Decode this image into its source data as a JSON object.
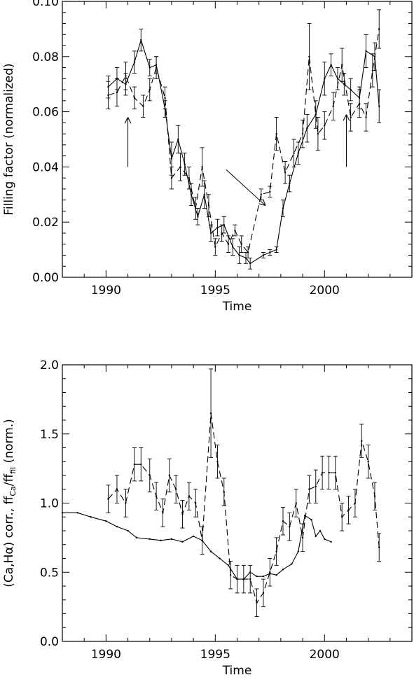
{
  "chart_data": [
    {
      "type": "line",
      "xlabel": "Time",
      "ylabel": "Filling factor (normalized)",
      "xlim": [
        1988,
        2004
      ],
      "ylim": [
        0,
        0.1
      ],
      "xticks": [
        "1990",
        "1995",
        "2000"
      ],
      "yticks": [
        "0.00",
        "0.02",
        "0.04",
        "0.06",
        "0.08",
        "0.10"
      ],
      "series": [
        {
          "style": "solid",
          "x": [
            1990.1,
            1990.5,
            1990.9,
            1991.3,
            1991.6,
            1992.0,
            1992.3,
            1992.7,
            1993.0,
            1993.3,
            1993.6,
            1993.9,
            1994.2,
            1994.5,
            1994.8,
            1995.1,
            1995.4,
            1995.8,
            1996.1,
            1996.4,
            1996.6,
            1997.2,
            1997.5,
            1997.8,
            1998.1,
            1998.4,
            1998.8,
            1999.2,
            1999.6,
            2000.0,
            2000.3,
            2000.6,
            2000.9,
            2001.2,
            2001.6,
            2001.9,
            2002.3,
            2002.5
          ],
          "y": [
            0.069,
            0.072,
            0.07,
            0.078,
            0.086,
            0.076,
            0.077,
            0.061,
            0.043,
            0.05,
            0.041,
            0.03,
            0.022,
            0.03,
            0.016,
            0.018,
            0.019,
            0.011,
            0.008,
            0.007,
            0.005,
            0.008,
            0.009,
            0.01,
            0.025,
            0.034,
            0.045,
            0.054,
            0.059,
            0.072,
            0.077,
            0.072,
            0.07,
            0.068,
            0.065,
            0.082,
            0.08,
            0.062
          ],
          "yerr": [
            0.004,
            0.004,
            0.004,
            0.004,
            0.004,
            0.003,
            0.003,
            0.003,
            0.006,
            0.005,
            0.004,
            0.004,
            0.003,
            0.005,
            0.003,
            0.003,
            0.003,
            0.003,
            0.003,
            0.002,
            0.002,
            0.001,
            0.001,
            0.001,
            0.003,
            0.003,
            0.004,
            0.005,
            0.005,
            0.006,
            0.004,
            0.004,
            0.004,
            0.004,
            0.004,
            0.006,
            0.005,
            0.006
          ]
        },
        {
          "style": "dashed",
          "x": [
            1990.1,
            1990.5,
            1990.9,
            1991.3,
            1991.7,
            1992.0,
            1992.3,
            1992.7,
            1993.0,
            1993.4,
            1993.8,
            1994.1,
            1994.4,
            1994.7,
            1995.0,
            1995.3,
            1995.6,
            1995.9,
            1996.2,
            1996.5,
            1997.1,
            1997.5,
            1997.8,
            1998.2,
            1998.6,
            1999.0,
            1999.3,
            1999.7,
            2000.0,
            2000.4,
            2000.8,
            2001.2,
            2001.6,
            2001.9,
            2002.2,
            2002.5
          ],
          "y": [
            0.066,
            0.067,
            0.073,
            0.065,
            0.062,
            0.068,
            0.076,
            0.065,
            0.036,
            0.04,
            0.036,
            0.025,
            0.04,
            0.026,
            0.011,
            0.016,
            0.012,
            0.017,
            0.012,
            0.009,
            0.03,
            0.031,
            0.052,
            0.038,
            0.045,
            0.052,
            0.08,
            0.052,
            0.055,
            0.062,
            0.077,
            0.058,
            0.063,
            0.058,
            0.075,
            0.09
          ],
          "yerr": [
            0.005,
            0.005,
            0.005,
            0.004,
            0.004,
            0.004,
            0.004,
            0.004,
            0.004,
            0.005,
            0.004,
            0.004,
            0.007,
            0.004,
            0.003,
            0.003,
            0.003,
            0.002,
            0.003,
            0.002,
            0.002,
            0.002,
            0.006,
            0.004,
            0.005,
            0.005,
            0.012,
            0.006,
            0.005,
            0.005,
            0.006,
            0.005,
            0.005,
            0.005,
            0.006,
            0.007
          ]
        }
      ],
      "arrows": [
        {
          "from": [
            1991.0,
            0.04
          ],
          "to": [
            1991.0,
            0.058
          ]
        },
        {
          "from": [
            1995.5,
            0.039
          ],
          "to": [
            1997.3,
            0.026
          ]
        },
        {
          "from": [
            2001.0,
            0.04
          ],
          "to": [
            2001.0,
            0.059
          ]
        }
      ]
    },
    {
      "type": "line",
      "xlabel": "Time",
      "ylabel": "(Ca,Hα) corr.,  ff_Ca/ff_fil (norm.)",
      "xlim": [
        1988,
        2004
      ],
      "ylim": [
        0,
        2
      ],
      "xticks": [
        "1990",
        "1995",
        "2000"
      ],
      "yticks": [
        "0.0",
        "0.5",
        "1.0",
        "1.5",
        "2.0"
      ],
      "series": [
        {
          "style": "solid",
          "x": [
            1988.0,
            1988.7,
            1989.3,
            1990.0,
            1990.5,
            1991.0,
            1991.4,
            1992.0,
            1992.5,
            1993.0,
            1993.5,
            1994.0,
            1994.4,
            1994.8,
            1995.2,
            1995.6,
            1996.0,
            1996.3,
            1996.6,
            1996.9,
            1997.2,
            1997.5,
            1997.8,
            1998.1,
            1998.5,
            1998.8,
            1999.1,
            1999.4,
            1999.6,
            1999.8,
            2000.0,
            2000.3
          ],
          "y": [
            0.93,
            0.93,
            0.9,
            0.87,
            0.83,
            0.8,
            0.75,
            0.74,
            0.73,
            0.74,
            0.72,
            0.76,
            0.73,
            0.65,
            0.6,
            0.55,
            0.45,
            0.45,
            0.5,
            0.47,
            0.47,
            0.49,
            0.48,
            0.52,
            0.56,
            0.65,
            0.91,
            0.88,
            0.76,
            0.8,
            0.74,
            0.72
          ],
          "yerr": []
        },
        {
          "style": "dashed",
          "x": [
            1990.1,
            1990.5,
            1990.9,
            1991.3,
            1991.6,
            1992.0,
            1992.3,
            1992.6,
            1992.9,
            1993.2,
            1993.5,
            1993.8,
            1994.1,
            1994.4,
            1994.8,
            1995.1,
            1995.4,
            1995.7,
            1996.0,
            1996.3,
            1996.6,
            1996.9,
            1997.2,
            1997.5,
            1997.8,
            1998.1,
            1998.4,
            1998.7,
            1999.0,
            1999.3,
            1999.6,
            1999.9,
            2000.2,
            2000.5,
            2000.8,
            2001.1,
            2001.4,
            2001.7,
            2002.0,
            2002.3,
            2002.5
          ],
          "y": [
            1.03,
            1.1,
            1.0,
            1.28,
            1.28,
            1.2,
            1.05,
            0.93,
            1.2,
            1.1,
            0.92,
            1.05,
            1.0,
            0.73,
            1.65,
            1.3,
            1.08,
            0.48,
            0.45,
            0.45,
            0.45,
            0.28,
            0.35,
            0.5,
            0.65,
            0.87,
            0.83,
            1.0,
            0.75,
            1.1,
            1.12,
            1.22,
            1.22,
            1.22,
            0.9,
            0.95,
            1.0,
            1.45,
            1.3,
            1.05,
            0.68
          ]
        }
      ]
    }
  ]
}
